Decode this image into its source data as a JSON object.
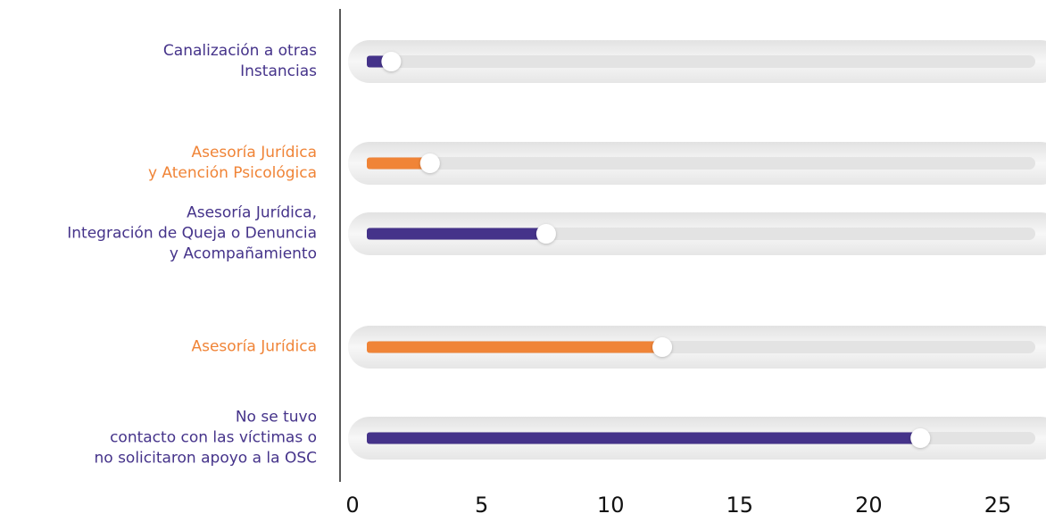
{
  "chart_data": {
    "type": "bar",
    "orientation": "horizontal",
    "categories": [
      "Canalización a otras\nInstancias",
      "Asesoría Jurídica\ny Atención Psicológica",
      "Asesoría Jurídica,\nIntegración de Queja o Denuncia\ny Acompañamiento",
      "Asesoría Jurídica",
      "No se tuvo\ncontacto con las víctimas o\nno solicitaron apoyo a la OSC"
    ],
    "values": [
      1.5,
      3,
      7.5,
      12,
      22
    ],
    "colors": [
      "#45338a",
      "#f08437",
      "#45338a",
      "#f08437",
      "#45338a"
    ],
    "xlim": [
      0,
      25
    ],
    "xticks": [
      0,
      5,
      10,
      15,
      20,
      25
    ]
  }
}
